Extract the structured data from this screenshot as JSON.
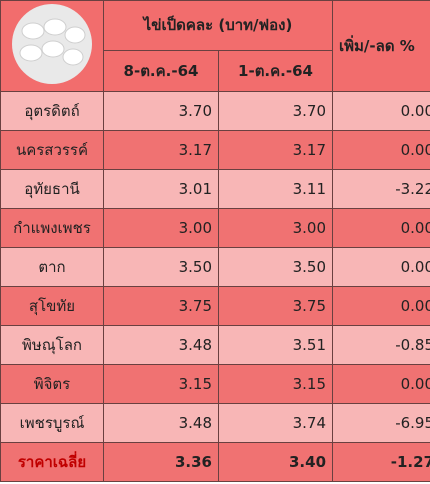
{
  "header": {
    "group": "ไข่เป็ดคละ (บาท/ฟอง)",
    "dates": [
      "8-ต.ค.-64",
      "1-ต.ค.-64"
    ],
    "change": "เพิ่ม/-ลด %"
  },
  "rows": [
    [
      "อุตรดิตถ์",
      "3.70",
      "3.70",
      "0.00"
    ],
    [
      "นครสวรรค์",
      "3.17",
      "3.17",
      "0.00"
    ],
    [
      "อุทัยธานี",
      "3.01",
      "3.11",
      "-3.22"
    ],
    [
      "กำแพงเพชร",
      "3.00",
      "3.00",
      "0.00"
    ],
    [
      "ตาก",
      "3.50",
      "3.50",
      "0.00"
    ],
    [
      "สุโขทัย",
      "3.75",
      "3.75",
      "0.00"
    ],
    [
      "พิษณุโลก",
      "3.48",
      "3.51",
      "-0.85"
    ],
    [
      "พิจิตร",
      "3.15",
      "3.15",
      "0.00"
    ],
    [
      "เพชรบูรณ์",
      "3.48",
      "3.74",
      "-6.95"
    ],
    [
      "ราคาเฉลี่ย",
      "3.36",
      "3.40",
      "-1.27"
    ]
  ]
}
